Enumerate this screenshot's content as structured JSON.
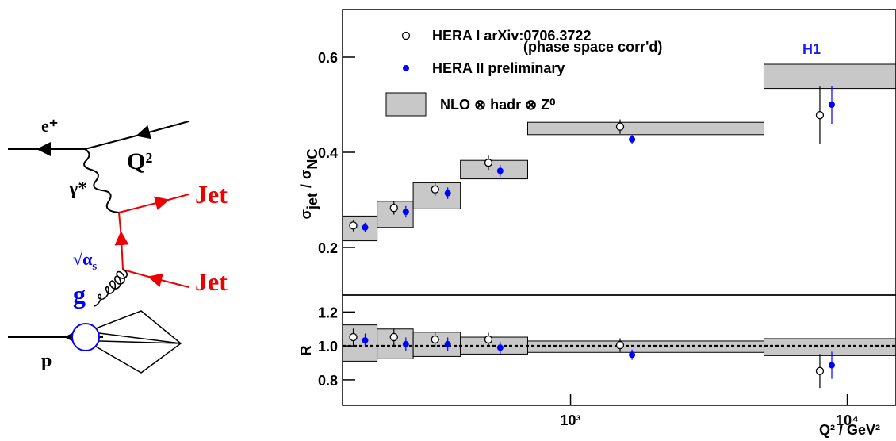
{
  "diagram": {
    "e": "e⁺",
    "photon": "γ*",
    "q2": "Q²",
    "jet_top": "Jet",
    "jet_bottom": "Jet",
    "alpha": "√α",
    "alpha_sub": "s",
    "gluon": "g",
    "proton": "p"
  },
  "chart_data": [
    {
      "type": "errorbar",
      "label": "H1",
      "legend_note": "(phase space corr'd)",
      "ylabel": [
        "σ",
        "jet",
        "/",
        "σ",
        "NC"
      ],
      "xlog": true,
      "xlim": [
        150,
        15000
      ],
      "ylim": [
        0.1,
        0.7
      ],
      "yticks": [
        0.2,
        0.4,
        0.6
      ],
      "band": {
        "name": "NLO ⊗ hadr ⊗ Z⁰",
        "color": "#c8c8c8",
        "bins": [
          150,
          200,
          270,
          400,
          700,
          5000,
          15000
        ],
        "low": [
          0.214,
          0.242,
          0.281,
          0.344,
          0.437,
          0.534
        ],
        "high": [
          0.266,
          0.297,
          0.336,
          0.383,
          0.463,
          0.585
        ]
      },
      "series": [
        {
          "name": "HERA I  arXiv:0706.3722",
          "color": "#000000",
          "marker": "open",
          "x": [
            164,
            230,
            324,
            505,
            1510,
            7960
          ],
          "values": [
            0.246,
            0.283,
            0.322,
            0.378,
            0.454,
            0.478
          ],
          "errors": [
            0.012,
            0.014,
            0.014,
            0.015,
            0.015,
            0.06
          ]
        },
        {
          "name": "HERA II preliminary",
          "color": "#0000ff",
          "marker": "filled",
          "x": [
            181,
            254,
            360,
            557,
            1668,
            8790
          ],
          "values": [
            0.242,
            0.275,
            0.314,
            0.361,
            0.427,
            0.5
          ],
          "errors": [
            0.01,
            0.012,
            0.012,
            0.012,
            0.01,
            0.04
          ]
        }
      ]
    },
    {
      "type": "errorbar",
      "ylabel": "R",
      "xlabel": "Q² / GeV²",
      "xlog": true,
      "xlim": [
        150,
        15000
      ],
      "ylim": [
        0.65,
        1.3
      ],
      "yticks": [
        0.8,
        {
          "value": 1,
          "label": "1.0"
        },
        1.2
      ],
      "xticks": [
        {
          "value": 1000,
          "label": "10³"
        },
        {
          "value": 10000,
          "label": "10⁴"
        }
      ],
      "refline": 1,
      "band": {
        "color": "#c8c8c8",
        "bins": [
          150,
          200,
          270,
          400,
          700,
          5000,
          15000
        ],
        "low": [
          0.91,
          0.924,
          0.938,
          0.952,
          0.962,
          0.943
        ],
        "high": [
          1.124,
          1.1,
          1.081,
          1.052,
          1.029,
          1.043
        ]
      },
      "series": [
        {
          "color": "#000000",
          "marker": "open",
          "x": [
            164,
            230,
            324,
            505,
            1510,
            7960
          ],
          "values": [
            1.052,
            1.052,
            1.038,
            1.038,
            1.005,
            0.852
          ],
          "errors": [
            0.05,
            0.05,
            0.045,
            0.04,
            0.04,
            0.1
          ]
        },
        {
          "color": "#0000ff",
          "marker": "filled",
          "x": [
            181,
            254,
            360,
            557,
            1668,
            8790
          ],
          "values": [
            1.033,
            1.01,
            1.01,
            0.99,
            0.948,
            0.886
          ],
          "errors": [
            0.04,
            0.04,
            0.04,
            0.035,
            0.03,
            0.08
          ]
        }
      ]
    }
  ]
}
